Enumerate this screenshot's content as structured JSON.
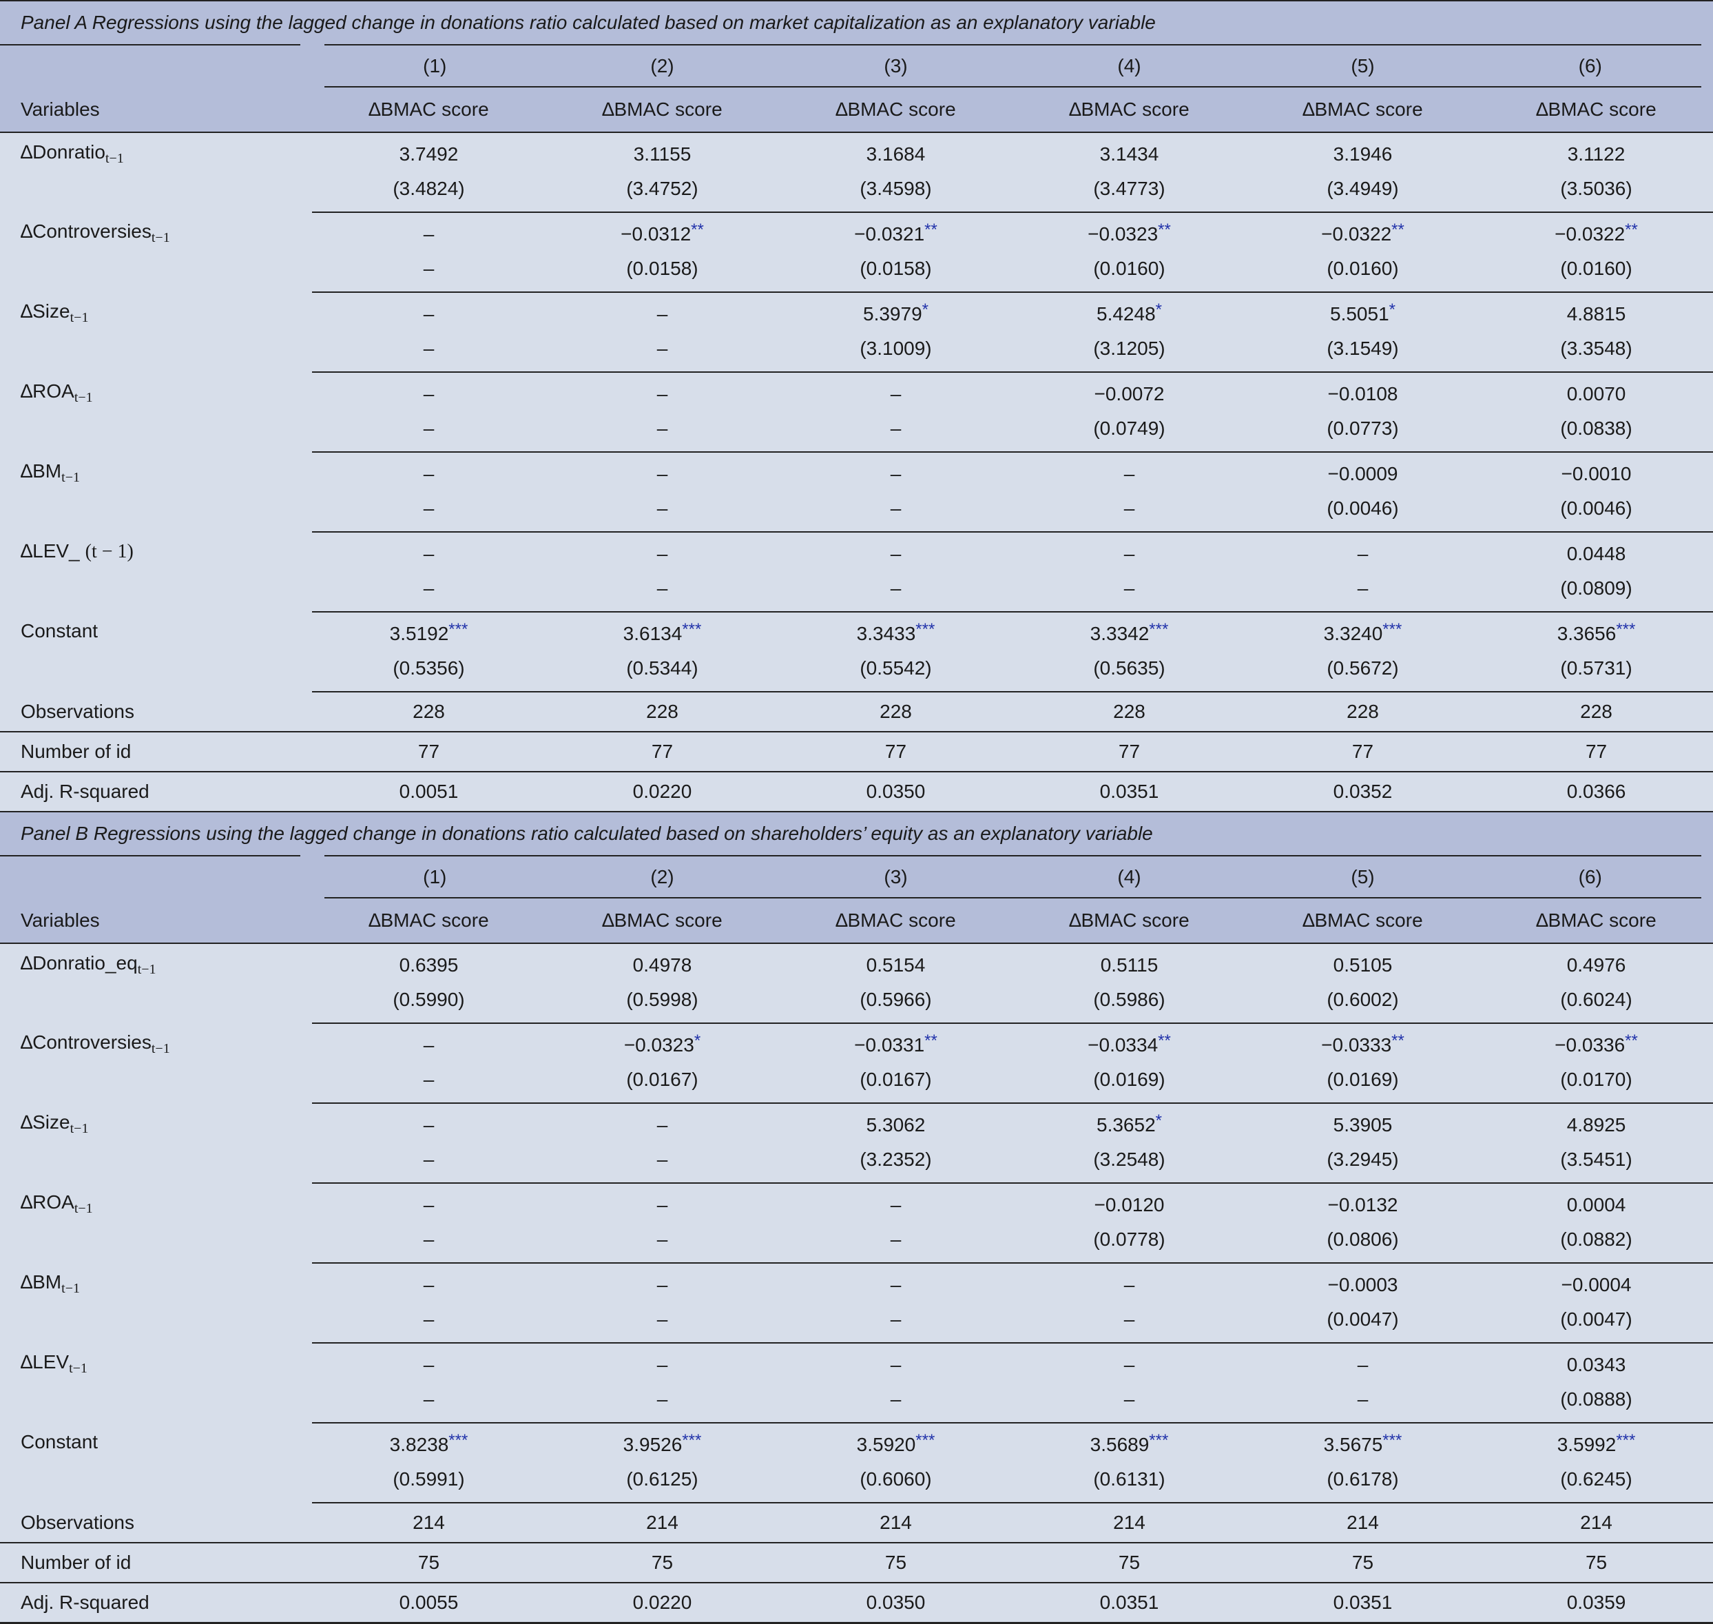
{
  "columns": [
    "(1)",
    "(2)",
    "(3)",
    "(4)",
    "(5)",
    "(6)"
  ],
  "variables_label": "Variables",
  "dep_var": "∆BMAC score",
  "panels": [
    {
      "title": "Panel A Regressions using the lagged change in donations ratio calculated based on market capitalization as an explanatory variable",
      "rows": [
        {
          "label": "∆Donratio",
          "sub": "t−1",
          "coef": [
            [
              "3.7492",
              ""
            ],
            [
              "3.1155",
              ""
            ],
            [
              "3.1684",
              ""
            ],
            [
              "3.1434",
              ""
            ],
            [
              "3.1946",
              ""
            ],
            [
              "3.1122",
              ""
            ]
          ],
          "se": [
            "(3.4824)",
            "(3.4752)",
            "(3.4598)",
            "(3.4773)",
            "(3.4949)",
            "(3.5036)"
          ]
        },
        {
          "label": "∆Controversies",
          "sub": "t−1",
          "coef": [
            [
              "–",
              ""
            ],
            [
              "−0.0312",
              "**"
            ],
            [
              "−0.0321",
              "**"
            ],
            [
              "−0.0323",
              "**"
            ],
            [
              "−0.0322",
              "**"
            ],
            [
              "−0.0322",
              "**"
            ]
          ],
          "se": [
            "–",
            "(0.0158)",
            "(0.0158)",
            "(0.0160)",
            "(0.0160)",
            "(0.0160)"
          ]
        },
        {
          "label": "∆Size",
          "sub": "t−1",
          "coef": [
            [
              "–",
              ""
            ],
            [
              "–",
              ""
            ],
            [
              "5.3979",
              "*"
            ],
            [
              "5.4248",
              "*"
            ],
            [
              "5.5051",
              "*"
            ],
            [
              "4.8815",
              ""
            ]
          ],
          "se": [
            "–",
            "–",
            "(3.1009)",
            "(3.1205)",
            "(3.1549)",
            "(3.3548)"
          ]
        },
        {
          "label": "∆ROA",
          "sub": "t−1",
          "coef": [
            [
              "–",
              ""
            ],
            [
              "–",
              ""
            ],
            [
              "–",
              ""
            ],
            [
              "−0.0072",
              ""
            ],
            [
              "−0.0108",
              ""
            ],
            [
              "0.0070",
              ""
            ]
          ],
          "se": [
            "–",
            "–",
            "–",
            "(0.0749)",
            "(0.0773)",
            "(0.0838)"
          ]
        },
        {
          "label": "∆BM",
          "sub": "t−1",
          "coef": [
            [
              "–",
              ""
            ],
            [
              "–",
              ""
            ],
            [
              "–",
              ""
            ],
            [
              "–",
              ""
            ],
            [
              "−0.0009",
              ""
            ],
            [
              "−0.0010",
              ""
            ]
          ],
          "se": [
            "–",
            "–",
            "–",
            "–",
            "(0.0046)",
            "(0.0046)"
          ]
        },
        {
          "label": "∆LEV_",
          "sub": "",
          "tail": "(t − 1)",
          "coef": [
            [
              "–",
              ""
            ],
            [
              "–",
              ""
            ],
            [
              "–",
              ""
            ],
            [
              "–",
              ""
            ],
            [
              "–",
              ""
            ],
            [
              "0.0448",
              ""
            ]
          ],
          "se": [
            "–",
            "–",
            "–",
            "–",
            "–",
            "(0.0809)"
          ]
        },
        {
          "label": "Constant",
          "sub": "",
          "coef": [
            [
              "3.5192",
              "***"
            ],
            [
              "3.6134",
              "***"
            ],
            [
              "3.3433",
              "***"
            ],
            [
              "3.3342",
              "***"
            ],
            [
              "3.3240",
              "***"
            ],
            [
              "3.3656",
              "***"
            ]
          ],
          "se": [
            "(0.5356)",
            "(0.5344)",
            "(0.5542)",
            "(0.5635)",
            "(0.5672)",
            "(0.5731)"
          ]
        }
      ],
      "stats": [
        {
          "label": "Observations",
          "values": [
            "228",
            "228",
            "228",
            "228",
            "228",
            "228"
          ]
        },
        {
          "label": "Number of id",
          "values": [
            "77",
            "77",
            "77",
            "77",
            "77",
            "77"
          ]
        },
        {
          "label": "Adj. R-squared",
          "values": [
            "0.0051",
            "0.0220",
            "0.0350",
            "0.0351",
            "0.0352",
            "0.0366"
          ]
        }
      ]
    },
    {
      "title": "Panel B Regressions using the lagged change in donations ratio calculated based on shareholders’ equity as an explanatory variable",
      "rows": [
        {
          "label": "∆Donratio_eq",
          "sub": "t−1",
          "coef": [
            [
              "0.6395",
              ""
            ],
            [
              "0.4978",
              ""
            ],
            [
              "0.5154",
              ""
            ],
            [
              "0.5115",
              ""
            ],
            [
              "0.5105",
              ""
            ],
            [
              "0.4976",
              ""
            ]
          ],
          "se": [
            "(0.5990)",
            "(0.5998)",
            "(0.5966)",
            "(0.5986)",
            "(0.6002)",
            "(0.6024)"
          ]
        },
        {
          "label": "∆Controversies",
          "sub": "t−1",
          "coef": [
            [
              "–",
              ""
            ],
            [
              "−0.0323",
              "*"
            ],
            [
              "−0.0331",
              "**"
            ],
            [
              "−0.0334",
              "**"
            ],
            [
              "−0.0333",
              "**"
            ],
            [
              "−0.0336",
              "**"
            ]
          ],
          "se": [
            "–",
            "(0.0167)",
            "(0.0167)",
            "(0.0169)",
            "(0.0169)",
            "(0.0170)"
          ]
        },
        {
          "label": "∆Size",
          "sub": "t−1",
          "coef": [
            [
              "–",
              ""
            ],
            [
              "–",
              ""
            ],
            [
              "5.3062",
              ""
            ],
            [
              "5.3652",
              "*"
            ],
            [
              "5.3905",
              ""
            ],
            [
              "4.8925",
              ""
            ]
          ],
          "se": [
            "–",
            "–",
            "(3.2352)",
            "(3.2548)",
            "(3.2945)",
            "(3.5451)"
          ]
        },
        {
          "label": "∆ROA",
          "sub": "t−1",
          "coef": [
            [
              "–",
              ""
            ],
            [
              "–",
              ""
            ],
            [
              "–",
              ""
            ],
            [
              "−0.0120",
              ""
            ],
            [
              "−0.0132",
              ""
            ],
            [
              "0.0004",
              ""
            ]
          ],
          "se": [
            "–",
            "–",
            "–",
            "(0.0778)",
            "(0.0806)",
            "(0.0882)"
          ]
        },
        {
          "label": "∆BM",
          "sub": "t−1",
          "coef": [
            [
              "–",
              ""
            ],
            [
              "–",
              ""
            ],
            [
              "–",
              ""
            ],
            [
              "–",
              ""
            ],
            [
              "−0.0003",
              ""
            ],
            [
              "−0.0004",
              ""
            ]
          ],
          "se": [
            "–",
            "–",
            "–",
            "–",
            "(0.0047)",
            "(0.0047)"
          ]
        },
        {
          "label": "∆LEV",
          "sub": "t−1",
          "coef": [
            [
              "–",
              ""
            ],
            [
              "–",
              ""
            ],
            [
              "–",
              ""
            ],
            [
              "–",
              ""
            ],
            [
              "–",
              ""
            ],
            [
              "0.0343",
              ""
            ]
          ],
          "se": [
            "–",
            "–",
            "–",
            "–",
            "–",
            "(0.0888)"
          ]
        },
        {
          "label": "Constant",
          "sub": "",
          "coef": [
            [
              "3.8238",
              "***"
            ],
            [
              "3.9526",
              "***"
            ],
            [
              "3.5920",
              "***"
            ],
            [
              "3.5689",
              "***"
            ],
            [
              "3.5675",
              "***"
            ],
            [
              "3.5992",
              "***"
            ]
          ],
          "se": [
            "(0.5991)",
            "(0.6125)",
            "(0.6060)",
            "(0.6131)",
            "(0.6178)",
            "(0.6245)"
          ]
        }
      ],
      "stats": [
        {
          "label": "Observations",
          "values": [
            "214",
            "214",
            "214",
            "214",
            "214",
            "214"
          ]
        },
        {
          "label": "Number of id",
          "values": [
            "75",
            "75",
            "75",
            "75",
            "75",
            "75"
          ]
        },
        {
          "label": "Adj. R-squared",
          "values": [
            "0.0055",
            "0.0220",
            "0.0350",
            "0.0351",
            "0.0351",
            "0.0359"
          ]
        }
      ]
    }
  ]
}
